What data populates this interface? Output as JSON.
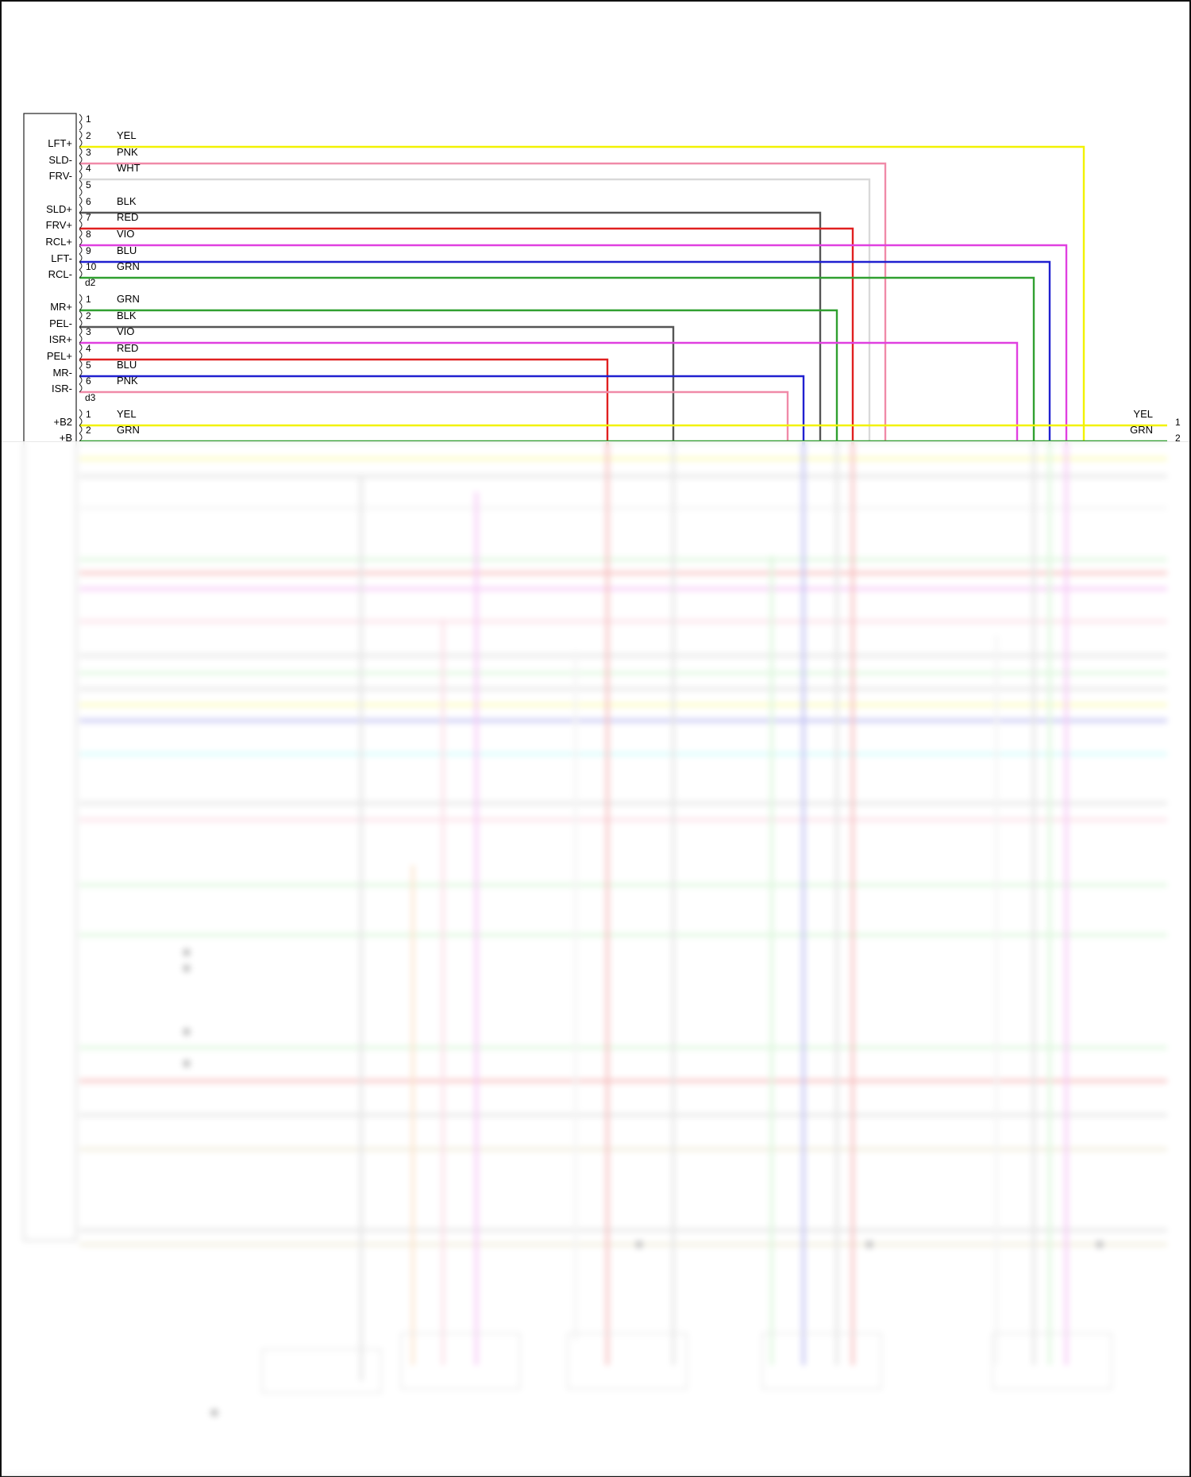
{
  "left_connector": {
    "groups": [
      {
        "id": "connector-1",
        "end_label": "d2",
        "pins": [
          {
            "num": "1",
            "signal": "",
            "color": "",
            "hex": ""
          },
          {
            "num": "2",
            "signal": "LFT+",
            "color": "YEL",
            "hex": "#f2f200"
          },
          {
            "num": "3",
            "signal": "SLD-",
            "color": "PNK",
            "hex": "#f08aa8"
          },
          {
            "num": "4",
            "signal": "FRV-",
            "color": "WHT",
            "hex": "#d9d9d9"
          },
          {
            "num": "5",
            "signal": "",
            "color": "",
            "hex": ""
          },
          {
            "num": "6",
            "signal": "SLD+",
            "color": "BLK",
            "hex": "#555555"
          },
          {
            "num": "7",
            "signal": "FRV+",
            "color": "RED",
            "hex": "#e02020"
          },
          {
            "num": "8",
            "signal": "RCL+",
            "color": "VIO",
            "hex": "#e040e0"
          },
          {
            "num": "9",
            "signal": "LFT-",
            "color": "BLU",
            "hex": "#2020d0"
          },
          {
            "num": "10",
            "signal": "RCL-",
            "color": "GRN",
            "hex": "#30a030"
          }
        ]
      },
      {
        "id": "connector-2",
        "end_label": "d3",
        "pins": [
          {
            "num": "1",
            "signal": "MR+",
            "color": "GRN",
            "hex": "#30a030"
          },
          {
            "num": "2",
            "signal": "PEL-",
            "color": "BLK",
            "hex": "#555555"
          },
          {
            "num": "3",
            "signal": "ISR+",
            "color": "VIO",
            "hex": "#e040e0"
          },
          {
            "num": "4",
            "signal": "PEL+",
            "color": "RED",
            "hex": "#e02020"
          },
          {
            "num": "5",
            "signal": "MR-",
            "color": "BLU",
            "hex": "#2020d0"
          },
          {
            "num": "6",
            "signal": "ISR-",
            "color": "PNK",
            "hex": "#f08aa8"
          }
        ]
      },
      {
        "id": "connector-3",
        "end_label": "",
        "pins": [
          {
            "num": "1",
            "signal": "+B2",
            "color": "YEL",
            "hex": "#f2f200"
          },
          {
            "num": "2",
            "signal": "+B",
            "color": "GRN",
            "hex": "#30a030"
          }
        ]
      }
    ]
  },
  "right_connector": {
    "pins": [
      {
        "num": "1",
        "color": "YEL"
      },
      {
        "num": "2",
        "color": "GRN"
      }
    ]
  },
  "colors": {
    "YEL": "#f2f200",
    "PNK": "#f08aa8",
    "WHT": "#d9d9d9",
    "BLK": "#555555",
    "RED": "#e02020",
    "VIO": "#e040e0",
    "BLU": "#2020d0",
    "GRN": "#30a030",
    "ORN": "#f5a050",
    "LTGRN": "#80e080",
    "LTBLU": "#60f0f0",
    "TAN": "#c8b878",
    "GRY": "#a0a0a0"
  }
}
